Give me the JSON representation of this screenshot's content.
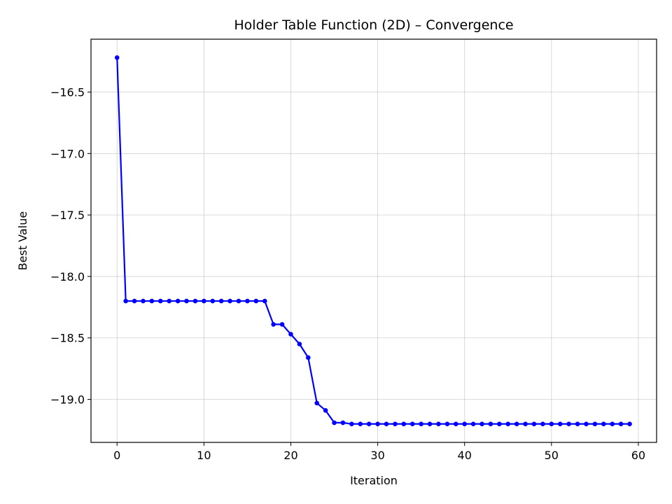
{
  "chart_data": {
    "type": "line",
    "title": "Holder Table Function (2D) – Convergence",
    "xlabel": "Iteration",
    "ylabel": "Best Value",
    "xlim": [
      -3,
      62.1
    ],
    "ylim": [
      -19.35,
      -16.07
    ],
    "xticks": [
      0,
      10,
      20,
      30,
      40,
      50,
      60
    ],
    "xtick_labels": [
      "0",
      "10",
      "20",
      "30",
      "40",
      "50",
      "60"
    ],
    "yticks": [
      -16.5,
      -17.0,
      -17.5,
      -18.0,
      -18.5,
      -19.0
    ],
    "ytick_labels": [
      "−16.5",
      "−17.0",
      "−17.5",
      "−18.0",
      "−18.5",
      "−19.0"
    ],
    "grid": true,
    "series": [
      {
        "color": "#0000ff",
        "marker": "circle",
        "x": [
          0,
          1,
          2,
          3,
          4,
          5,
          6,
          7,
          8,
          9,
          10,
          11,
          12,
          13,
          14,
          15,
          16,
          17,
          18,
          19,
          20,
          21,
          22,
          23,
          24,
          25,
          26,
          27,
          28,
          29,
          30,
          31,
          32,
          33,
          34,
          35,
          36,
          37,
          38,
          39,
          40,
          41,
          42,
          43,
          44,
          45,
          46,
          47,
          48,
          49,
          50,
          51,
          52,
          53,
          54,
          55,
          56,
          57,
          58,
          59
        ],
        "values": [
          -16.22,
          -18.2,
          -18.2,
          -18.2,
          -18.2,
          -18.2,
          -18.2,
          -18.2,
          -18.2,
          -18.2,
          -18.2,
          -18.2,
          -18.2,
          -18.2,
          -18.2,
          -18.2,
          -18.2,
          -18.2,
          -18.39,
          -18.39,
          -18.47,
          -18.55,
          -18.66,
          -19.03,
          -19.09,
          -19.19,
          -19.19,
          -19.2,
          -19.2,
          -19.2,
          -19.2,
          -19.2,
          -19.2,
          -19.2,
          -19.2,
          -19.2,
          -19.2,
          -19.2,
          -19.2,
          -19.2,
          -19.2,
          -19.2,
          -19.2,
          -19.2,
          -19.2,
          -19.2,
          -19.2,
          -19.2,
          -19.2,
          -19.2,
          -19.2,
          -19.2,
          -19.2,
          -19.2,
          -19.2,
          -19.2,
          -19.2,
          -19.2,
          -19.2,
          -19.2
        ]
      }
    ]
  }
}
